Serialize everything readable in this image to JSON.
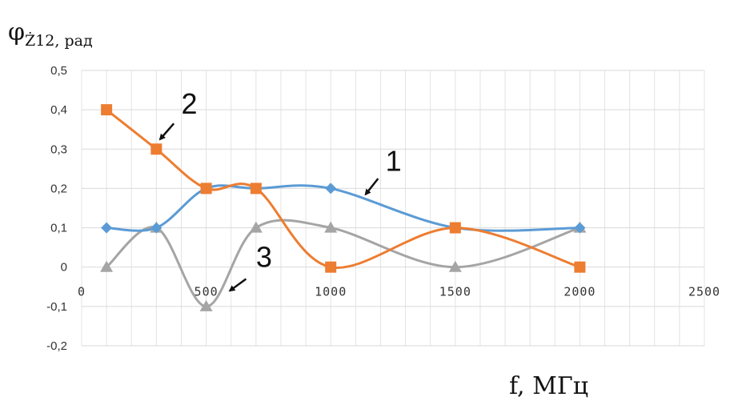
{
  "chart_data": {
    "type": "line",
    "title": "",
    "ylabel": {
      "symbol": "φ",
      "subscript": "Ż12",
      "unit": ", рад"
    },
    "xlabel": "f, МГц",
    "xlim": [
      0,
      2500
    ],
    "ylim": [
      -0.2,
      0.5
    ],
    "x_ticks": [
      0,
      500,
      1000,
      1500,
      2000,
      2500
    ],
    "x_tick_labels": [
      "0",
      "500",
      "1000",
      "1500",
      "2000",
      "2500"
    ],
    "y_ticks": [
      -0.2,
      -0.1,
      0,
      0.1,
      0.2,
      0.3,
      0.4,
      0.5
    ],
    "y_tick_labels": [
      "-0,2",
      "-0,1",
      "0",
      "0,1",
      "0,2",
      "0,3",
      "0,4",
      "0,5"
    ],
    "grid": true,
    "smooth": true,
    "series": [
      {
        "name": "1",
        "color": "#5b9bd5",
        "marker": "diamond",
        "x": [
          100,
          300,
          500,
          700,
          1000,
          1500,
          2000
        ],
        "y": [
          0.1,
          0.1,
          0.2,
          0.2,
          0.2,
          0.1,
          0.1
        ]
      },
      {
        "name": "2",
        "color": "#ed7d31",
        "marker": "square",
        "x": [
          100,
          300,
          500,
          700,
          1000,
          1500,
          2000
        ],
        "y": [
          0.4,
          0.3,
          0.2,
          0.2,
          0.0,
          0.1,
          0.0
        ]
      },
      {
        "name": "3",
        "color": "#a5a5a5",
        "marker": "triangle",
        "x": [
          100,
          300,
          500,
          700,
          1000,
          1500,
          2000
        ],
        "y": [
          0.0,
          0.1,
          -0.1,
          0.1,
          0.1,
          0.0,
          0.1
        ]
      }
    ],
    "annotations": [
      {
        "text": "1",
        "series": "1",
        "point_x": 1000
      },
      {
        "text": "2",
        "series": "2",
        "point_x": 300
      },
      {
        "text": "3",
        "series": "3",
        "point_x": 500
      }
    ]
  }
}
